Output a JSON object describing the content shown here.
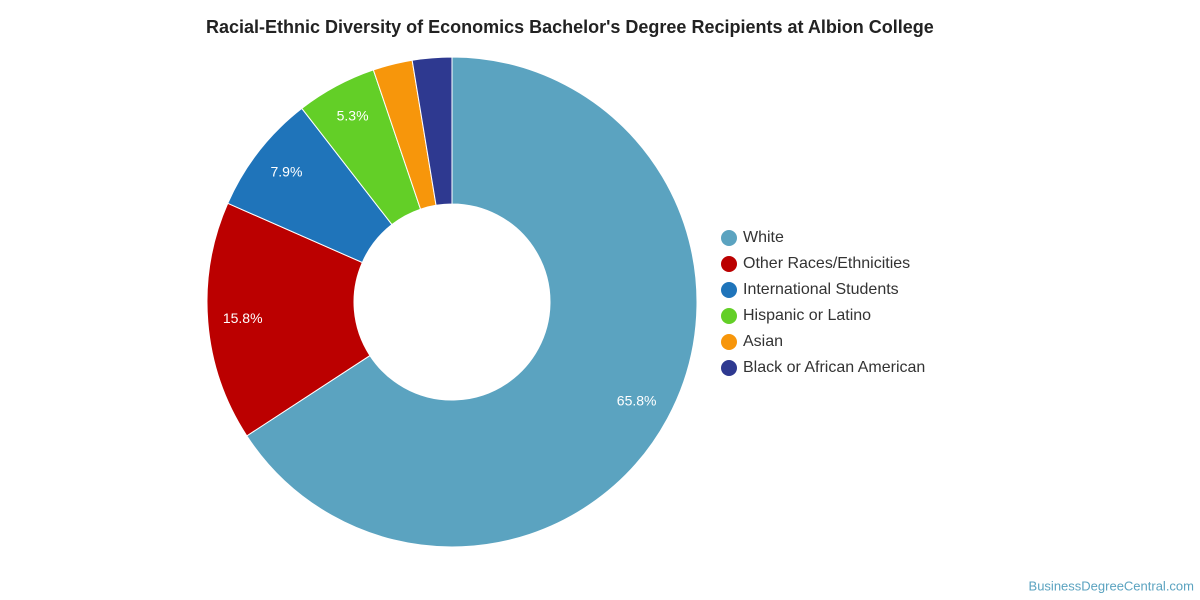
{
  "chart_data": {
    "type": "donut",
    "title": "Racial-Ethnic Diversity of Economics Bachelor's Degree Recipients at Albion College",
    "categories": [
      "White",
      "Other Races/Ethnicities",
      "International Students",
      "Hispanic or Latino",
      "Asian",
      "Black or African American"
    ],
    "values": [
      65.8,
      15.8,
      7.9,
      5.3,
      2.6,
      2.6
    ],
    "value_labels": [
      "65.8%",
      "15.8%",
      "7.9%",
      "5.3%",
      null,
      null
    ],
    "colors": [
      "#5ba3c0",
      "#bb0000",
      "#1f74ba",
      "#63cf27",
      "#f7960b",
      "#2e3990"
    ],
    "legend": "right",
    "source": "BusinessDegreeCentral.com"
  }
}
